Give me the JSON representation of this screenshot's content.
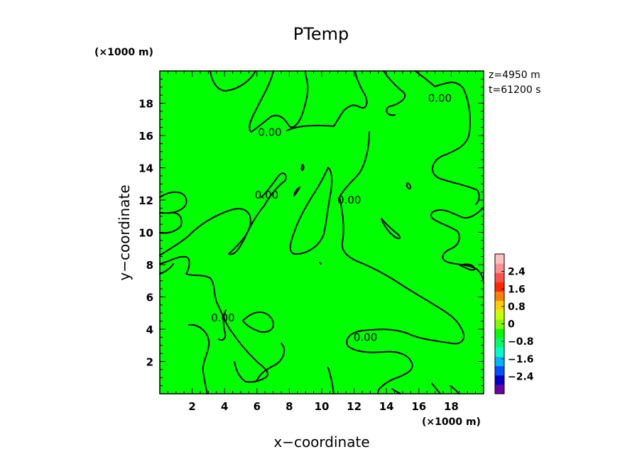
{
  "chart_data": {
    "type": "contour",
    "title": "PTemp",
    "xlabel": "x−coordinate",
    "ylabel": "y−coordinate",
    "x_unit": "(×1000 m)",
    "y_unit": "(×1000 m)",
    "xlim": [
      0,
      20
    ],
    "ylim": [
      0,
      20
    ],
    "xticks": [
      2,
      4,
      6,
      8,
      10,
      12,
      14,
      16,
      18
    ],
    "yticks": [
      2,
      4,
      6,
      8,
      10,
      12,
      14,
      16,
      18
    ],
    "info": [
      "z=4950  m",
      "t=61200  s"
    ],
    "field_color": "#00ff00",
    "contour_color": "#000000",
    "contour_labels": [
      {
        "text": "0.00",
        "x": 12.7,
        "y": 3.5
      },
      {
        "text": "0.00",
        "x": 17.3,
        "y": 18.3
      },
      {
        "text": "0.00",
        "x": 6.8,
        "y": 16.2
      },
      {
        "text": "0.00",
        "x": 6.6,
        "y": 12.3
      },
      {
        "text": "0.00",
        "x": 11.7,
        "y": 12.0
      },
      {
        "text": "0.00",
        "x": 3.9,
        "y": 4.7
      }
    ],
    "colorbar": {
      "labels": [
        "2.4",
        "1.6",
        "0.8",
        "0",
        "−0.8",
        "−1.6",
        "−2.4"
      ],
      "label_values": [
        2.4,
        1.6,
        0.8,
        0,
        -0.8,
        -1.6,
        -2.4
      ],
      "range": [
        -3.2,
        3.2
      ],
      "colors": [
        "#6a00a8",
        "#0000c8",
        "#0050ff",
        "#00b4ff",
        "#00ffc8",
        "#00ff64",
        "#00ff00",
        "#80ff00",
        "#c8ff00",
        "#ffd000",
        "#ff8000",
        "#ff2800",
        "#ff5050",
        "#ff9090",
        "#ffc0c0"
      ]
    }
  }
}
